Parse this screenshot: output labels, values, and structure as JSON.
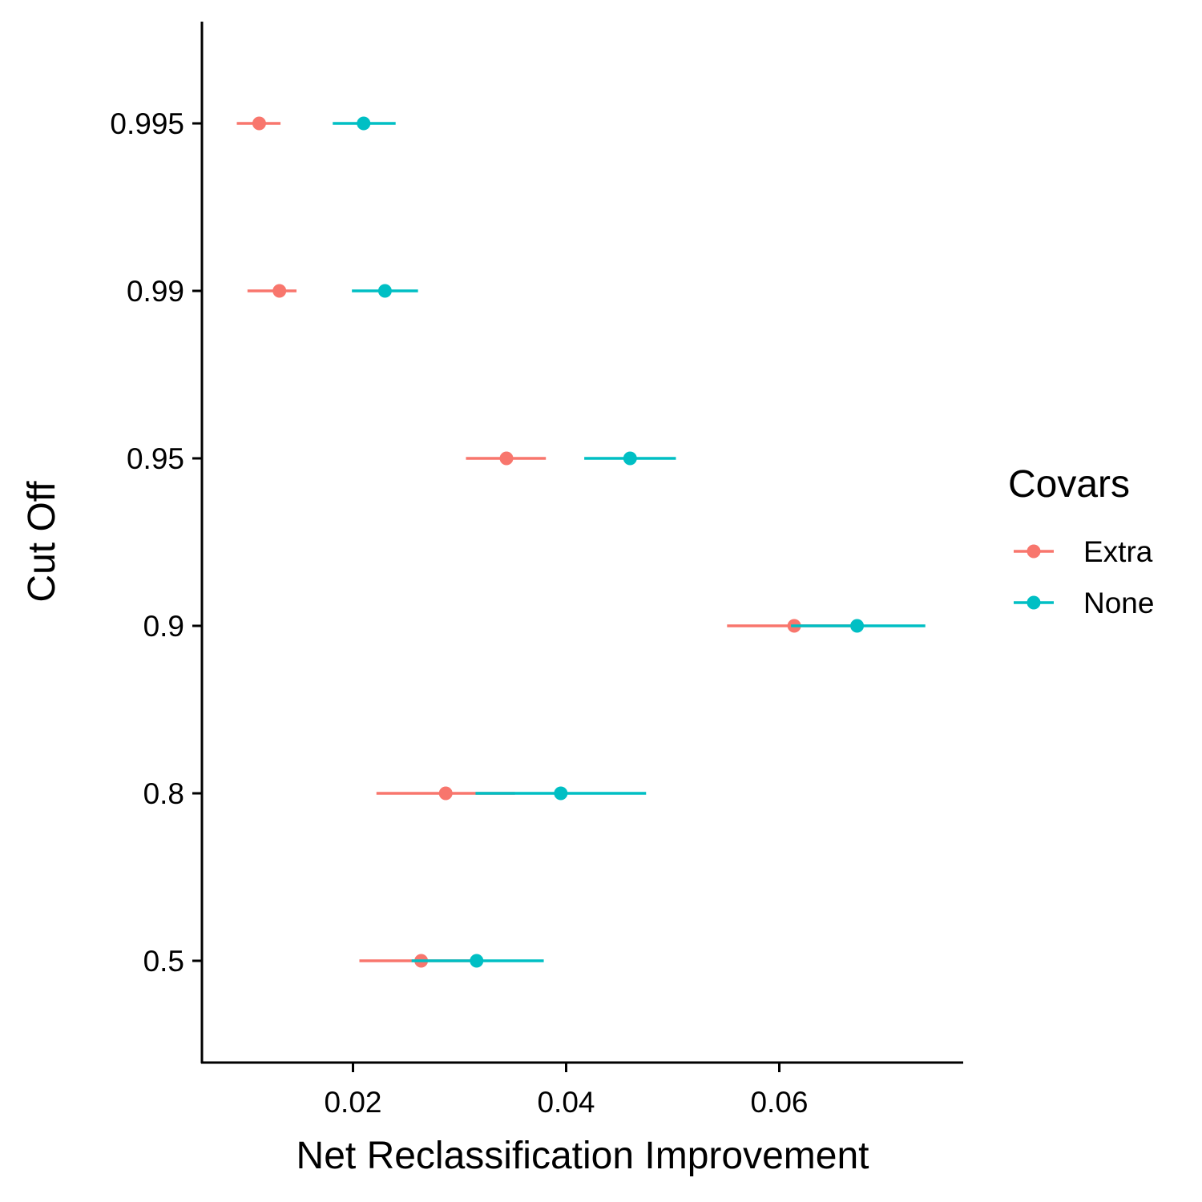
{
  "chart_data": {
    "type": "scatter",
    "xlabel": "Net Reclassification Improvement",
    "ylabel": "Cut Off",
    "categories": [
      "0.5",
      "0.8",
      "0.9",
      "0.95",
      "0.99",
      "0.995"
    ],
    "x_ticks": [
      "0.02",
      "0.04",
      "0.06"
    ],
    "x_tick_values": [
      0.02,
      0.04,
      0.06
    ],
    "xlim": [
      0.0059,
      0.0767
    ],
    "grid": false,
    "legend": {
      "title": "Covars",
      "placement": "right"
    },
    "series": [
      {
        "name": "Extra",
        "color": "#F8766D",
        "values": [
          0.0264,
          0.0287,
          0.0614,
          0.0344,
          0.0131,
          0.0112
        ],
        "lower": [
          0.0206,
          0.0222,
          0.0551,
          0.0306,
          0.0101,
          0.0091
        ],
        "upper": [
          0.0322,
          0.0352,
          0.0677,
          0.0381,
          0.0147,
          0.0132
        ]
      },
      {
        "name": "None",
        "color": "#00BFC4",
        "values": [
          0.0316,
          0.0395,
          0.0673,
          0.046,
          0.023,
          0.021
        ],
        "lower": [
          0.0255,
          0.0315,
          0.0611,
          0.0417,
          0.0199,
          0.0181
        ],
        "upper": [
          0.0379,
          0.0475,
          0.0737,
          0.0503,
          0.0261,
          0.024
        ]
      }
    ]
  }
}
